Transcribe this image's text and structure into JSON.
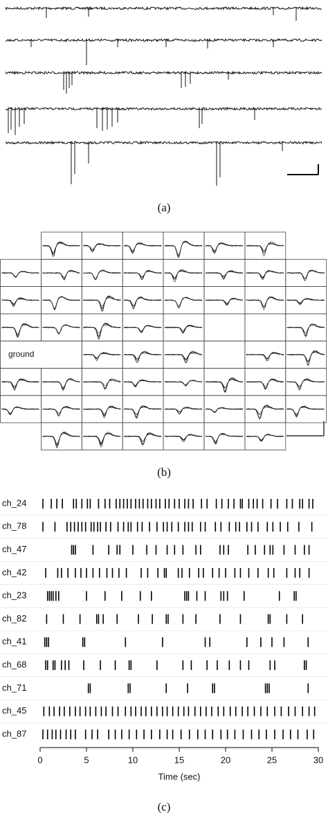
{
  "panel_a": {
    "caption": "(a)"
  },
  "panel_b": {
    "caption": "(b)",
    "ground_label": "ground"
  },
  "panel_c": {
    "caption": "(c)"
  },
  "chart_data": {
    "type": "raster",
    "x_label": "Time (sec)",
    "xlim": [
      0,
      30
    ],
    "xticks": [
      0,
      5,
      10,
      15,
      20,
      25,
      30
    ],
    "color": "#000000",
    "categories": [
      "ch_24",
      "ch_78",
      "ch_47",
      "ch_42",
      "ch_23",
      "ch_82",
      "ch_41",
      "ch_68",
      "ch_71",
      "ch_45",
      "ch_87"
    ],
    "events": [
      [
        0.3,
        1.2,
        1.8,
        2.4,
        3.6,
        3.9,
        4.5,
        5.1,
        5.4,
        6.3,
        7.0,
        7.5,
        8.2,
        8.6,
        9.0,
        9.4,
        9.8,
        10.3,
        10.7,
        11.1,
        11.6,
        12.0,
        12.5,
        12.9,
        13.5,
        13.9,
        14.5,
        15.0,
        15.6,
        16.0,
        16.5,
        17.4,
        18.0,
        19.0,
        19.6,
        20.3,
        20.9,
        21.6,
        21.8,
        22.5,
        23.0,
        23.4,
        24.0,
        24.9,
        25.6,
        26.6,
        27.2,
        28.0,
        28.3,
        29.0,
        29.4
      ],
      [
        0.3,
        1.6,
        2.9,
        3.3,
        3.7,
        4.1,
        4.5,
        4.9,
        5.5,
        5.8,
        6.2,
        6.5,
        7.1,
        7.6,
        8.4,
        9.0,
        9.5,
        9.8,
        10.5,
        11.0,
        11.8,
        12.6,
        13.3,
        13.7,
        14.2,
        14.9,
        15.6,
        16.0,
        16.4,
        17.3,
        17.8,
        18.9,
        19.5,
        20.4,
        21.1,
        21.5,
        22.3,
        22.8,
        23.5,
        24.5,
        25.1,
        25.9,
        26.7,
        27.9,
        29.3
      ],
      [
        3.4,
        3.6,
        3.8,
        5.7,
        7.4,
        8.3,
        8.6,
        10.0,
        11.5,
        12.5,
        13.7,
        14.5,
        15.4,
        16.8,
        17.3,
        19.4,
        19.8,
        20.3,
        22.4,
        23.2,
        24.2,
        24.8,
        25.1,
        26.3,
        27.5,
        28.5,
        29.0
      ],
      [
        0.6,
        1.9,
        2.3,
        3.0,
        3.8,
        4.4,
        5.0,
        5.7,
        6.4,
        7.2,
        7.8,
        8.5,
        9.3,
        10.9,
        11.6,
        12.7,
        13.4,
        13.6,
        14.9,
        15.3,
        16.1,
        17.1,
        17.6,
        18.6,
        19.3,
        20.0,
        21.0,
        21.6,
        22.5,
        23.5,
        24.6,
        25.2,
        26.6,
        27.5,
        28.0,
        29.0
      ],
      [
        0.8,
        1.0,
        1.2,
        1.4,
        1.7,
        2.0,
        5.0,
        7.0,
        8.8,
        10.8,
        12.0,
        15.6,
        15.8,
        16.0,
        16.9,
        17.8,
        19.5,
        19.8,
        20.2,
        22.0,
        25.8,
        27.4,
        27.6
      ],
      [
        0.7,
        2.5,
        4.3,
        6.1,
        6.3,
        6.8,
        8.3,
        10.6,
        12.1,
        13.6,
        13.8,
        15.4,
        16.8,
        19.4,
        21.6,
        24.6,
        24.8,
        26.6,
        28.3
      ],
      [
        0.5,
        0.7,
        0.9,
        4.6,
        4.8,
        9.2,
        13.2,
        17.8,
        18.3,
        22.3,
        23.8,
        25.0,
        26.3,
        28.9
      ],
      [
        0.6,
        0.8,
        1.4,
        1.6,
        2.3,
        2.7,
        3.1,
        4.7,
        6.5,
        8.1,
        9.6,
        9.8,
        12.6,
        15.4,
        16.3,
        18.0,
        19.1,
        20.4,
        21.6,
        22.5,
        24.8,
        25.3,
        28.5,
        28.7
      ],
      [
        5.2,
        5.4,
        9.5,
        9.7,
        13.6,
        15.9,
        18.6,
        18.8,
        24.3,
        24.5,
        24.7,
        28.9
      ],
      [
        0.4,
        1.0,
        1.5,
        2.1,
        2.6,
        3.2,
        3.8,
        4.3,
        4.9,
        5.4,
        6.0,
        6.6,
        7.1,
        7.8,
        8.4,
        9.2,
        9.8,
        10.3,
        10.9,
        11.4,
        12.0,
        12.6,
        13.2,
        13.7,
        14.3,
        14.9,
        15.5,
        16.0,
        16.7,
        17.3,
        17.9,
        18.5,
        19.2,
        19.8,
        20.5,
        21.1,
        21.8,
        22.4,
        23.1,
        23.8,
        24.5,
        25.3,
        26.0,
        26.8,
        27.5,
        28.3,
        29.0,
        29.6
      ],
      [
        0.3,
        0.8,
        1.3,
        1.7,
        2.2,
        2.8,
        3.3,
        3.8,
        4.9,
        5.6,
        6.2,
        7.4,
        8.1,
        8.8,
        9.6,
        10.4,
        11.2,
        12.0,
        12.9,
        13.7,
        14.3,
        15.2,
        16.1,
        17.0,
        17.8,
        18.6,
        19.5,
        20.2,
        21.0,
        21.9,
        22.8,
        23.6,
        24.4,
        25.3,
        26.2,
        27.0,
        27.8,
        28.8,
        29.5
      ]
    ]
  }
}
